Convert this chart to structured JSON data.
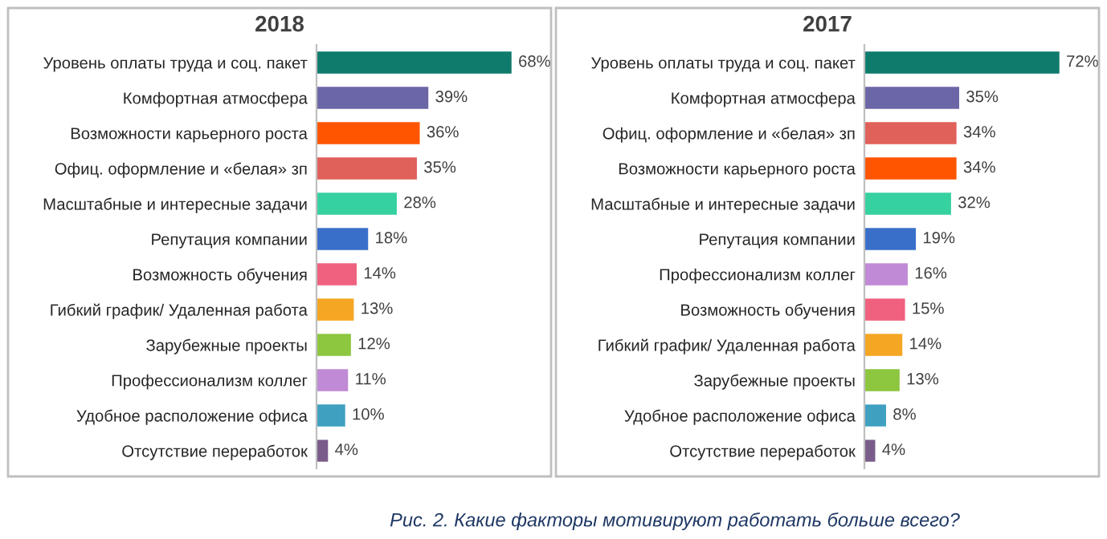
{
  "chart_data": [
    {
      "type": "bar",
      "orientation": "horizontal",
      "title": "2018",
      "categories": [
        "Уровень оплаты труда и соц. пакет",
        "Комфортная атмосфера",
        "Возможности карьерного роста",
        "Офиц. оформление и «белая» зп",
        "Масштабные и интересные задачи",
        "Репутация компании",
        "Возможность обучения",
        "Гибкий график/ Удаленная работа",
        "Зарубежные проекты",
        "Профессионализм коллег",
        "Удобное расположение офиса",
        "Отсутствие переработок"
      ],
      "values": [
        68,
        39,
        36,
        35,
        28,
        18,
        14,
        13,
        12,
        11,
        10,
        4
      ],
      "value_labels": [
        "68%",
        "39%",
        "36%",
        "35%",
        "28%",
        "18%",
        "14%",
        "13%",
        "12%",
        "11%",
        "10%",
        "4%"
      ],
      "colors": [
        "#0f7b6c",
        "#6b66a6",
        "#ff5500",
        "#e0605a",
        "#36d1a0",
        "#3a6fc9",
        "#f0607f",
        "#f5a623",
        "#8dc63f",
        "#c08ad6",
        "#3fa0c0",
        "#7a5c8a"
      ],
      "grid": false,
      "legend": false,
      "annotations": [
        "Рис. 2. Какие факторы мотивируют работать больше всего?"
      ]
    },
    {
      "type": "bar",
      "orientation": "horizontal",
      "title": "2017",
      "categories": [
        "Уровень оплаты труда и соц. пакет",
        "Комфортная атмосфера",
        "Офиц. оформление и «белая» зп",
        "Возможности карьерного роста",
        "Масштабные и интересные задачи",
        "Репутация компании",
        "Профессионализм коллег",
        "Возможность обучения",
        "Гибкий график/ Удаленная работа",
        "Зарубежные проекты",
        "Удобное расположение офиса",
        "Отсутствие переработок"
      ],
      "values": [
        72,
        35,
        34,
        34,
        32,
        19,
        16,
        15,
        14,
        13,
        8,
        4
      ],
      "value_labels": [
        "72%",
        "35%",
        "34%",
        "34%",
        "32%",
        "19%",
        "16%",
        "15%",
        "14%",
        "13%",
        "8%",
        "4%"
      ],
      "colors": [
        "#0f7b6c",
        "#6b66a6",
        "#e0605a",
        "#ff5500",
        "#36d1a0",
        "#3a6fc9",
        "#c08ad6",
        "#f0607f",
        "#f5a623",
        "#8dc63f",
        "#3fa0c0",
        "#7a5c8a"
      ],
      "grid": false,
      "legend": false
    }
  ]
}
